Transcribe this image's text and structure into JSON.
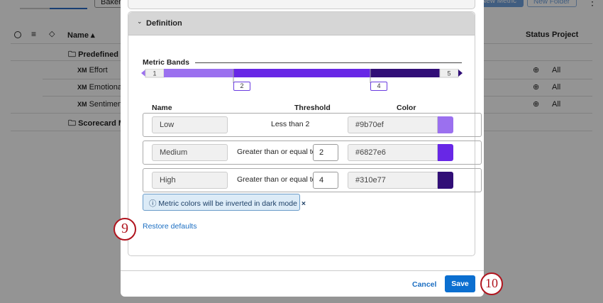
{
  "background": {
    "toolbar": {
      "baker_label": "Baker",
      "new_metric_label": "New Metric",
      "new_folder_label": "New Folder"
    },
    "columns": {
      "name": "Name",
      "status": "Status",
      "project": "Project"
    },
    "rows": [
      {
        "type": "folder",
        "name": "Predefined (",
        "status": "",
        "project": ""
      },
      {
        "type": "metric",
        "prefix": "XM",
        "name": "Effort",
        "project": "All"
      },
      {
        "type": "metric",
        "prefix": "XM",
        "name": "Emotional",
        "project": "All"
      },
      {
        "type": "metric",
        "prefix": "XM",
        "name": "Sentiment",
        "project": "All"
      },
      {
        "type": "folder",
        "name": "Scorecard M",
        "status": "",
        "project": ""
      }
    ]
  },
  "modal": {
    "section_title": "Definition",
    "metric_bands": {
      "label": "Metric Bands",
      "min": "1",
      "max": "5",
      "thresholds": [
        "2",
        "4"
      ],
      "colors": [
        "#9b70ef",
        "#6827e6",
        "#310e77"
      ]
    },
    "table": {
      "headers": {
        "name": "Name",
        "threshold": "Threshold",
        "color": "Color"
      },
      "rows": [
        {
          "name": "Low",
          "threshold_text": "Less than 2",
          "value": "",
          "color": "#9b70ef"
        },
        {
          "name": "Medium",
          "threshold_text": "Greater than or equal to",
          "value": "2",
          "color": "#6827e6"
        },
        {
          "name": "High",
          "threshold_text": "Greater than or equal to",
          "value": "4",
          "color": "#310e77"
        }
      ]
    },
    "info_banner": "Metric colors will be inverted in dark mode",
    "restore_defaults": "Restore defaults",
    "cancel_label": "Cancel",
    "save_label": "Save"
  },
  "callouts": [
    "9",
    "10"
  ]
}
